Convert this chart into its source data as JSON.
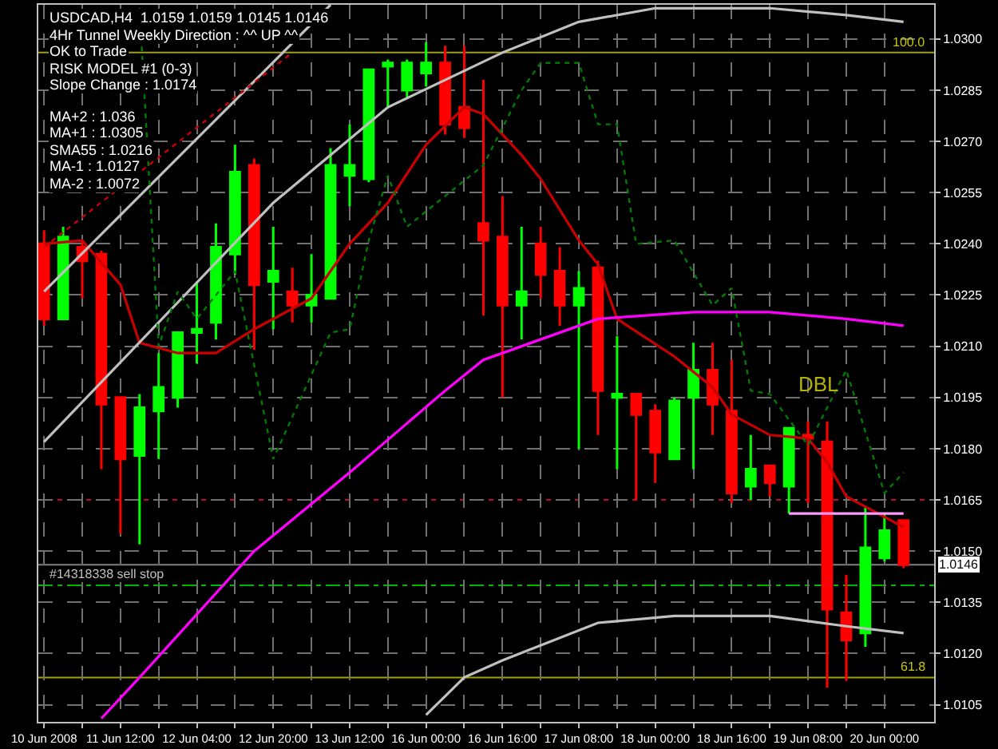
{
  "chart_data": {
    "type": "candlestick",
    "title": "USDCAD,H4  1.0159 1.0159 1.0145 1.0146",
    "categories": [
      "10 Jun 2008",
      null,
      null,
      null,
      "11 Jun 12:00",
      null,
      null,
      null,
      "12 Jun 04:00",
      null,
      null,
      null,
      "12 Jun 20:00",
      null,
      null,
      null,
      "13 Jun 12:00",
      null,
      null,
      null,
      "16 Jun 00:00",
      null,
      null,
      null,
      "16 Jun 16:00",
      null,
      null,
      null,
      "17 Jun 08:00",
      null,
      null,
      null,
      "18 Jun 00:00",
      null,
      null,
      null,
      "18 Jun 16:00",
      null,
      null,
      null,
      "19 Jun 08:00",
      null,
      null,
      null,
      "20 Jun 00:00",
      null
    ],
    "ohlc": [
      [
        1.024,
        1.0244,
        1.0216,
        1.0218
      ],
      [
        1.0218,
        1.0245,
        1.0218,
        1.0242
      ],
      [
        1.0239,
        1.0241,
        1.0224,
        1.0235
      ],
      [
        1.0237,
        1.0238,
        1.0174,
        1.0193
      ],
      [
        1.0195,
        1.0195,
        1.0155,
        1.0177
      ],
      [
        1.0178,
        1.0196,
        1.0152,
        1.0192
      ],
      [
        1.0191,
        1.0208,
        1.0177,
        1.0198
      ],
      [
        1.0195,
        1.0214,
        1.0192,
        1.0214
      ],
      [
        1.0214,
        1.0229,
        1.0205,
        1.0215
      ],
      [
        1.0217,
        1.0246,
        1.0212,
        1.0239
      ],
      [
        1.0237,
        1.0269,
        1.0231,
        1.0261
      ],
      [
        1.0263,
        1.0265,
        1.0209,
        1.0228
      ],
      [
        1.0229,
        1.0245,
        1.0215,
        1.0232
      ],
      [
        1.0226,
        1.0233,
        1.0217,
        1.0222
      ],
      [
        1.0222,
        1.0237,
        1.0217,
        1.0225
      ],
      [
        1.0224,
        1.0268,
        1.0224,
        1.0263
      ],
      [
        1.026,
        1.0275,
        1.0251,
        1.0263
      ],
      [
        1.0259,
        1.0291,
        1.0258,
        1.0291
      ],
      [
        1.0292,
        1.0294,
        1.028,
        1.0293
      ],
      [
        1.0285,
        1.0294,
        1.0283,
        1.0293
      ],
      [
        1.029,
        1.0299,
        1.0286,
        1.0293
      ],
      [
        1.0293,
        1.0298,
        1.0272,
        1.0275
      ],
      [
        1.028,
        1.0298,
        1.0271,
        1.0274
      ],
      [
        1.0246,
        1.0288,
        1.0219,
        1.0241
      ],
      [
        1.0242,
        1.0254,
        1.0195,
        1.0222
      ],
      [
        1.0222,
        1.0245,
        1.0212,
        1.0226
      ],
      [
        1.024,
        1.0245,
        1.0224,
        1.0231
      ],
      [
        1.0232,
        1.0239,
        1.0216,
        1.0222
      ],
      [
        1.0222,
        1.0232,
        1.018,
        1.0227
      ],
      [
        1.0233,
        1.0235,
        1.0184,
        1.0197
      ],
      [
        1.0195,
        1.0213,
        1.0174,
        1.0196
      ],
      [
        1.0196,
        1.0196,
        1.0165,
        1.019
      ],
      [
        1.0191,
        1.0193,
        1.017,
        1.0179
      ],
      [
        1.0177,
        1.0195,
        1.0177,
        1.0194
      ],
      [
        1.0195,
        1.0211,
        1.0174,
        1.0203
      ],
      [
        1.0203,
        1.0211,
        1.0184,
        1.0193
      ],
      [
        1.0191,
        1.0206,
        1.0164,
        1.0167
      ],
      [
        1.0169,
        1.0184,
        1.0165,
        1.0174
      ],
      [
        1.0175,
        1.0175,
        1.0166,
        1.017
      ],
      [
        1.0169,
        1.0186,
        1.0161,
        1.0186
      ],
      [
        1.0184,
        1.0188,
        1.0164,
        1.0183
      ],
      [
        1.0182,
        1.0188,
        1.011,
        1.0133
      ],
      [
        1.0132,
        1.0143,
        1.0112,
        1.0124
      ],
      [
        1.0126,
        1.0163,
        1.0122,
        1.0151
      ],
      [
        1.0148,
        1.0161,
        1.0147,
        1.0156
      ],
      [
        1.0159,
        1.0159,
        1.0145,
        1.0146
      ]
    ],
    "colors": [
      "#ff0000",
      "#00ff00",
      "#ff0000",
      "#ff0000",
      "#ff0000",
      "#00ff00",
      "#00ff00",
      "#00ff00",
      "#00ff00",
      "#00ff00",
      "#00ff00",
      "#ff0000",
      "#00ff00",
      "#ff0000",
      "#00ff00",
      "#00ff00",
      "#00ff00",
      "#00ff00",
      "#00ff00",
      "#00ff00",
      "#00ff00",
      "#ff0000",
      "#ff0000",
      "#ff0000",
      "#ff0000",
      "#00ff00",
      "#ff0000",
      "#ff0000",
      "#00ff00",
      "#ff0000",
      "#00ff00",
      "#ff0000",
      "#ff0000",
      "#00ff00",
      "#00ff00",
      "#ff0000",
      "#ff0000",
      "#00ff00",
      "#ff0000",
      "#00ff00",
      "#ff0000",
      "#ff0000",
      "#ff0000",
      "#00ff00",
      "#00ff00",
      "#ff0000"
    ],
    "series": [
      {
        "type": "line",
        "color": "#c80000",
        "line_style": "solid",
        "values": [
          1.024,
          null,
          1.0241,
          null,
          1.0228,
          1.0211,
          null,
          1.0208,
          null,
          1.0208,
          null,
          1.0215,
          null,
          null,
          1.0224,
          null,
          1.024,
          null,
          1.0252,
          null,
          1.0269,
          null,
          1.028,
          1.0278,
          null,
          1.0266,
          1.0259,
          null,
          1.0241,
          1.0234,
          1.0218,
          null,
          null,
          1.0207,
          null,
          1.0198,
          1.019,
          null,
          1.0184,
          null,
          1.0183,
          1.0176,
          1.0166,
          null,
          1.016,
          1.0157
        ]
      },
      {
        "type": "line",
        "color": "#ff00ff",
        "line_style": "solid",
        "values": [
          null,
          null,
          null,
          1.0101,
          null,
          1.0113,
          null,
          null,
          null,
          null,
          null,
          1.015,
          null,
          null,
          null,
          null,
          1.0173,
          null,
          null,
          null,
          null,
          1.0197,
          null,
          1.0206,
          null,
          1.021,
          null,
          null,
          null,
          1.0218,
          null,
          null,
          null,
          null,
          1.022,
          null,
          null,
          null,
          1.022,
          null,
          null,
          null,
          1.0218,
          null,
          null,
          1.0216
        ]
      },
      {
        "type": "line",
        "color": "#c0c0c0",
        "line_style": "solid",
        "values": [
          1.0182,
          null,
          null,
          null,
          null,
          null,
          null,
          null,
          null,
          null,
          null,
          null,
          1.0252,
          null,
          null,
          null,
          null,
          null,
          1.028,
          null,
          null,
          null,
          null,
          null,
          1.0296,
          null,
          null,
          null,
          1.0305,
          null,
          null,
          null,
          1.0309,
          null,
          null,
          null,
          null,
          null,
          1.0309,
          null,
          null,
          null,
          1.0307,
          null,
          null,
          1.0305
        ]
      },
      {
        "type": "line",
        "color": "#c0c0c0",
        "line_style": "solid",
        "values": [
          null,
          null,
          null,
          null,
          null,
          null,
          null,
          null,
          null,
          null,
          null,
          null,
          null,
          null,
          null,
          null,
          null,
          null,
          null,
          null,
          1.0102,
          null,
          1.0113,
          null,
          1.0118,
          null,
          null,
          null,
          null,
          1.0129,
          null,
          null,
          null,
          1.0131,
          null,
          null,
          null,
          null,
          1.0131,
          null,
          null,
          null,
          1.0128,
          null,
          null,
          1.0126
        ]
      },
      {
        "type": "line",
        "color": "#c0c0c0",
        "line_style": "solid",
        "values": [
          1.0226,
          null,
          null,
          null,
          null,
          null,
          null,
          null,
          null,
          null,
          null,
          null,
          null,
          null,
          null,
          1.031,
          null,
          null,
          null,
          null,
          null,
          null,
          null,
          null,
          null,
          null,
          null,
          null,
          null,
          null,
          null,
          null,
          null,
          null,
          null,
          null,
          null,
          null,
          null,
          null,
          null,
          null,
          null,
          null,
          null,
          null
        ]
      },
      {
        "type": "line",
        "color": "#c80000",
        "line_style": "dotted",
        "values": [
          1.0239,
          null,
          null,
          null,
          null,
          null,
          null,
          null,
          null,
          null,
          null,
          null,
          null,
          1.0296,
          null,
          null,
          null,
          null,
          null,
          null,
          null,
          null,
          null,
          null,
          null,
          null,
          null,
          null,
          null,
          null,
          null,
          null,
          null,
          null,
          null,
          null,
          null,
          null,
          null,
          null,
          null,
          null,
          null,
          null,
          null,
          null
        ]
      },
      {
        "type": "line",
        "color": "#007a00",
        "line_style": "dotted",
        "values": [
          null,
          null,
          null,
          null,
          null,
          1.0309,
          1.021,
          1.0226,
          1.0218,
          null,
          1.0232,
          null,
          1.0177,
          null,
          null,
          1.0214,
          1.0215,
          1.0241,
          1.026,
          1.0245,
          null,
          null,
          null,
          1.0263,
          null,
          1.0285,
          1.0293,
          null,
          1.0293,
          1.0275,
          1.0275,
          1.024,
          null,
          1.0241,
          null,
          1.0222,
          1.0227,
          1.0197,
          1.0196,
          null,
          1.0181,
          null,
          1.0203,
          null,
          1.0167,
          1.0173
        ]
      },
      {
        "type": "line",
        "color": "#ff99ff",
        "line_style": "solid",
        "values": [
          null,
          null,
          null,
          null,
          null,
          null,
          null,
          null,
          null,
          null,
          null,
          null,
          null,
          null,
          null,
          null,
          null,
          null,
          null,
          null,
          null,
          null,
          null,
          null,
          null,
          null,
          null,
          null,
          null,
          null,
          null,
          null,
          null,
          null,
          null,
          null,
          null,
          null,
          null,
          1.0161,
          1.0161,
          1.0161,
          1.0161,
          1.0161,
          1.0161,
          1.0161
        ]
      }
    ],
    "ylim": [
      1.01,
      1.031
    ],
    "yticks": [
      {
        "value": 1.0105,
        "label": "1.0105"
      },
      {
        "value": 1.012,
        "label": "1.0120"
      },
      {
        "value": 1.0135,
        "label": "1.0135"
      },
      {
        "value": 1.015,
        "label": "1.0150"
      },
      {
        "value": 1.0165,
        "label": "1.0165"
      },
      {
        "value": 1.018,
        "label": "1.0180"
      },
      {
        "value": 1.0195,
        "label": "1.0195"
      },
      {
        "value": 1.021,
        "label": "1.0210"
      },
      {
        "value": 1.0225,
        "label": "1.0225"
      },
      {
        "value": 1.024,
        "label": "1.0240"
      },
      {
        "value": 1.0255,
        "label": "1.0255"
      },
      {
        "value": 1.027,
        "label": "1.0270"
      },
      {
        "value": 1.0285,
        "label": "1.0285"
      },
      {
        "value": 1.03,
        "label": "1.0300"
      }
    ],
    "grid": true,
    "ref_lines": [
      {
        "axis": "y",
        "value": 1.0296,
        "color": "#a0a000",
        "line_style": "solid"
      },
      {
        "axis": "y",
        "value": 1.0113,
        "color": "#a0a000",
        "line_style": "solid"
      },
      {
        "axis": "y",
        "value": 1.0165,
        "color": "#c8003c",
        "line_style": "dashed"
      },
      {
        "axis": "y",
        "value": 1.014,
        "label": "#14318338 sell stop",
        "color": "#00b400",
        "line_style": "dashed"
      },
      {
        "axis": "y",
        "value": 1.0146,
        "label": "1.0146",
        "color": "#808080",
        "line_style": "solid"
      }
    ],
    "annotations": [
      "4Hr Tunnel Weekly Direction : ^^ UP ^^",
      "OK to Trade",
      "RISK MODEL #1 (0-3)",
      "Slope Change : 1.0174",
      "MA+2 : 1.036",
      "MA+1 : 1.0305",
      "SMA55 : 1.0216",
      "MA-1 : 1.0127",
      "MA-2 : 1.0072",
      {
        "text": "100.0",
        "y": 1.0296
      },
      {
        "text": "61.8",
        "y": 1.0113
      },
      "DBL"
    ]
  }
}
